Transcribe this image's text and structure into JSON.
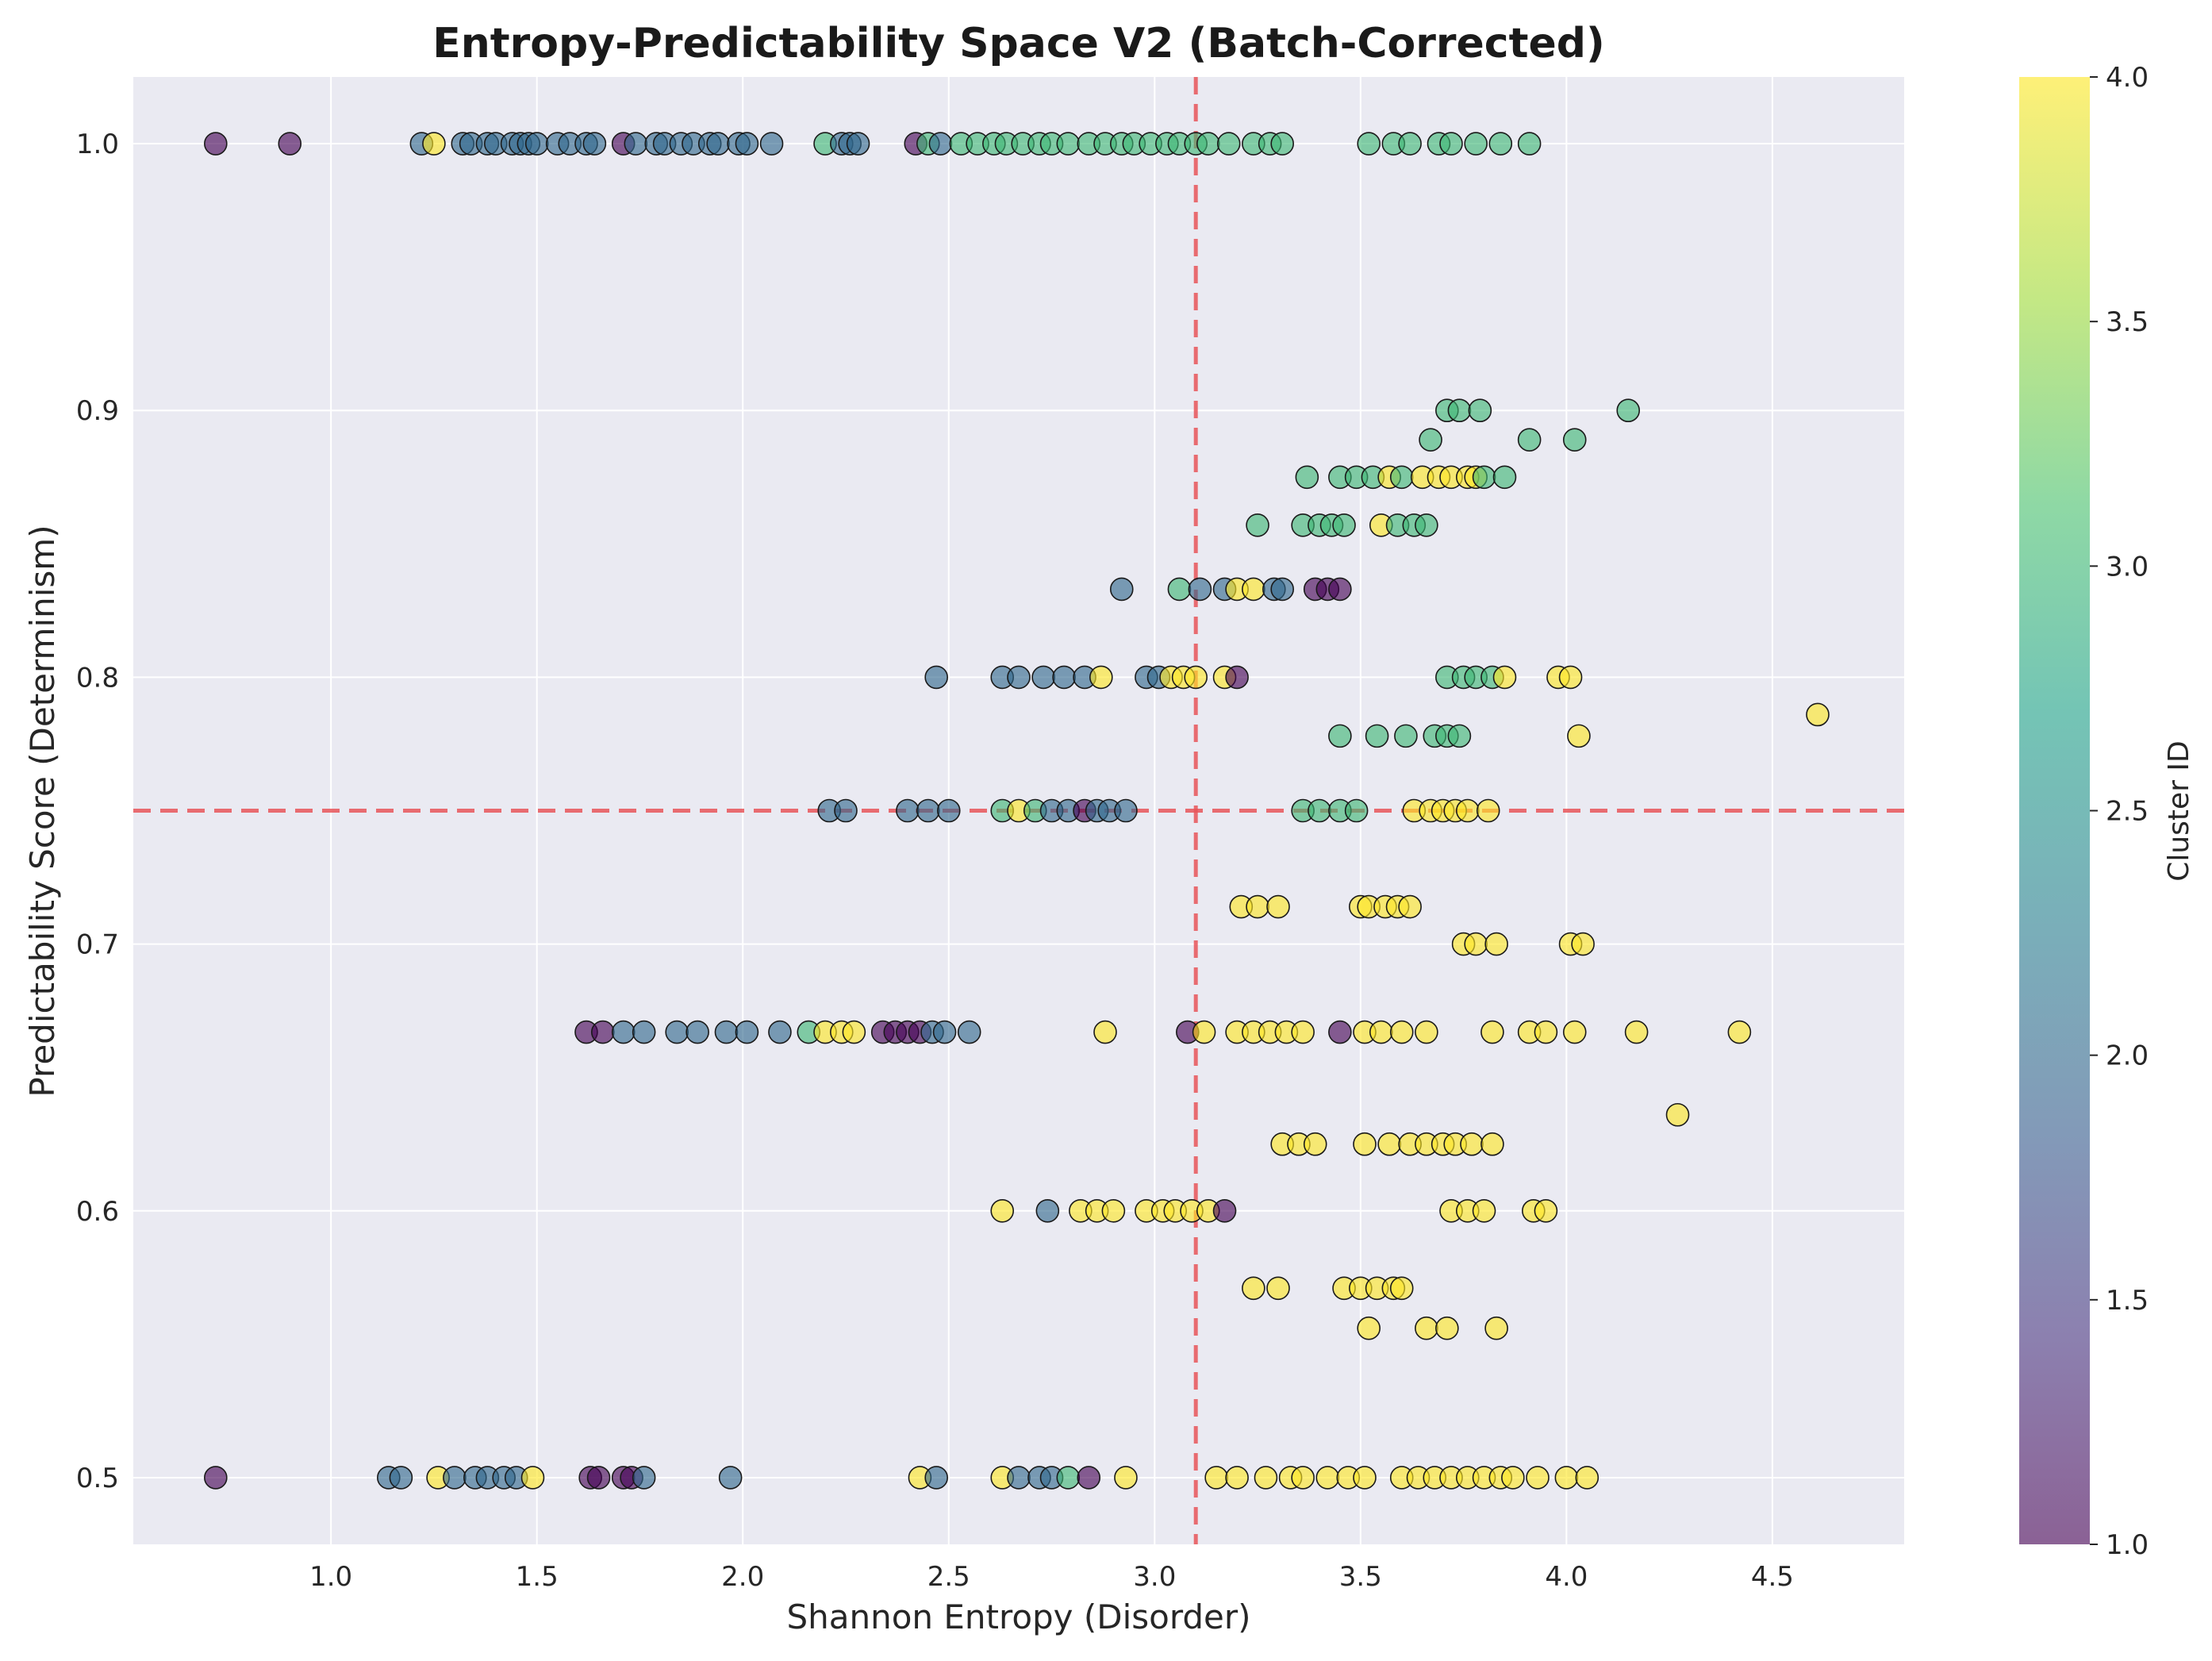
{
  "chart_data": {
    "type": "scatter",
    "title": "Entropy-Predictability Space V2 (Batch-Corrected)",
    "xlabel": "Shannon Entropy (Disorder)",
    "ylabel": "Predictability Score (Determinism)",
    "xlim": [
      0.52,
      4.82
    ],
    "ylim": [
      0.475,
      1.025
    ],
    "xticks": [
      "1.0",
      "1.5",
      "2.0",
      "2.5",
      "3.0",
      "3.5",
      "4.0",
      "4.5"
    ],
    "yticks": [
      "0.5",
      "0.6",
      "0.7",
      "0.8",
      "0.9",
      "1.0"
    ],
    "grid": true,
    "reference_lines": {
      "x": 3.1,
      "y": 0.75,
      "color": "#e8555a",
      "style": "dashed"
    },
    "colorbar": {
      "label": "Cluster ID",
      "range": [
        1.0,
        4.0
      ],
      "ticks": [
        "1.0",
        "1.5",
        "2.0",
        "2.5",
        "3.0",
        "3.5",
        "4.0"
      ],
      "colormap": "viridis"
    },
    "points": [
      [
        0.72,
        1.0,
        1
      ],
      [
        0.9,
        1.0,
        1
      ],
      [
        1.22,
        1.0,
        2
      ],
      [
        1.25,
        1.0,
        4
      ],
      [
        1.32,
        1.0,
        2
      ],
      [
        1.34,
        1.0,
        2
      ],
      [
        1.38,
        1.0,
        2
      ],
      [
        1.4,
        1.0,
        2
      ],
      [
        1.44,
        1.0,
        2
      ],
      [
        1.46,
        1.0,
        2
      ],
      [
        1.48,
        1.0,
        2
      ],
      [
        1.5,
        1.0,
        2
      ],
      [
        1.55,
        1.0,
        2
      ],
      [
        1.58,
        1.0,
        2
      ],
      [
        1.62,
        1.0,
        2
      ],
      [
        1.64,
        1.0,
        2
      ],
      [
        1.71,
        1.0,
        1
      ],
      [
        1.74,
        1.0,
        2
      ],
      [
        1.79,
        1.0,
        2
      ],
      [
        1.81,
        1.0,
        2
      ],
      [
        1.85,
        1.0,
        2
      ],
      [
        1.88,
        1.0,
        2
      ],
      [
        1.92,
        1.0,
        2
      ],
      [
        1.94,
        1.0,
        2
      ],
      [
        1.99,
        1.0,
        2
      ],
      [
        2.01,
        1.0,
        2
      ],
      [
        2.07,
        1.0,
        2
      ],
      [
        2.2,
        1.0,
        3
      ],
      [
        2.24,
        1.0,
        2
      ],
      [
        2.26,
        1.0,
        2
      ],
      [
        2.28,
        1.0,
        2
      ],
      [
        2.42,
        1.0,
        1
      ],
      [
        2.45,
        1.0,
        3
      ],
      [
        2.48,
        1.0,
        2
      ],
      [
        2.53,
        1.0,
        3
      ],
      [
        2.57,
        1.0,
        3
      ],
      [
        2.61,
        1.0,
        3
      ],
      [
        2.64,
        1.0,
        3
      ],
      [
        2.68,
        1.0,
        3
      ],
      [
        2.72,
        1.0,
        3
      ],
      [
        2.75,
        1.0,
        3
      ],
      [
        2.79,
        1.0,
        3
      ],
      [
        2.84,
        1.0,
        3
      ],
      [
        2.88,
        1.0,
        3
      ],
      [
        2.92,
        1.0,
        3
      ],
      [
        2.95,
        1.0,
        3
      ],
      [
        2.99,
        1.0,
        3
      ],
      [
        3.03,
        1.0,
        3
      ],
      [
        3.06,
        1.0,
        3
      ],
      [
        3.1,
        1.0,
        3
      ],
      [
        3.13,
        1.0,
        3
      ],
      [
        3.18,
        1.0,
        3
      ],
      [
        3.24,
        1.0,
        3
      ],
      [
        3.28,
        1.0,
        3
      ],
      [
        3.31,
        1.0,
        3
      ],
      [
        3.52,
        1.0,
        3
      ],
      [
        3.58,
        1.0,
        3
      ],
      [
        3.62,
        1.0,
        3
      ],
      [
        3.69,
        1.0,
        3
      ],
      [
        3.72,
        1.0,
        3
      ],
      [
        3.78,
        1.0,
        3
      ],
      [
        3.84,
        1.0,
        3
      ],
      [
        3.91,
        1.0,
        3
      ],
      [
        3.71,
        0.9,
        3
      ],
      [
        3.74,
        0.9,
        3
      ],
      [
        3.79,
        0.9,
        3
      ],
      [
        4.15,
        0.9,
        3
      ],
      [
        3.67,
        0.889,
        3
      ],
      [
        3.91,
        0.889,
        3
      ],
      [
        4.02,
        0.889,
        3
      ],
      [
        3.37,
        0.875,
        3
      ],
      [
        3.45,
        0.875,
        3
      ],
      [
        3.49,
        0.875,
        3
      ],
      [
        3.53,
        0.875,
        3
      ],
      [
        3.57,
        0.875,
        4
      ],
      [
        3.6,
        0.875,
        3
      ],
      [
        3.65,
        0.875,
        4
      ],
      [
        3.69,
        0.875,
        4
      ],
      [
        3.72,
        0.875,
        4
      ],
      [
        3.76,
        0.875,
        4
      ],
      [
        3.78,
        0.875,
        4
      ],
      [
        3.8,
        0.875,
        3
      ],
      [
        3.85,
        0.875,
        3
      ],
      [
        3.25,
        0.857,
        3
      ],
      [
        3.36,
        0.857,
        3
      ],
      [
        3.4,
        0.857,
        3
      ],
      [
        3.43,
        0.857,
        3
      ],
      [
        3.46,
        0.857,
        3
      ],
      [
        3.55,
        0.857,
        4
      ],
      [
        3.59,
        0.857,
        3
      ],
      [
        3.63,
        0.857,
        3
      ],
      [
        3.66,
        0.857,
        3
      ],
      [
        2.92,
        0.833,
        2
      ],
      [
        3.06,
        0.833,
        3
      ],
      [
        3.11,
        0.833,
        2
      ],
      [
        3.17,
        0.833,
        2
      ],
      [
        3.2,
        0.833,
        4
      ],
      [
        3.24,
        0.833,
        4
      ],
      [
        3.29,
        0.833,
        2
      ],
      [
        3.31,
        0.833,
        2
      ],
      [
        3.39,
        0.833,
        1
      ],
      [
        3.42,
        0.833,
        1
      ],
      [
        3.45,
        0.833,
        1
      ],
      [
        2.47,
        0.8,
        2
      ],
      [
        2.63,
        0.8,
        2
      ],
      [
        2.67,
        0.8,
        2
      ],
      [
        2.73,
        0.8,
        2
      ],
      [
        2.78,
        0.8,
        2
      ],
      [
        2.83,
        0.8,
        2
      ],
      [
        2.87,
        0.8,
        4
      ],
      [
        2.98,
        0.8,
        2
      ],
      [
        3.01,
        0.8,
        2
      ],
      [
        3.04,
        0.8,
        4
      ],
      [
        3.07,
        0.8,
        4
      ],
      [
        3.1,
        0.8,
        4
      ],
      [
        3.17,
        0.8,
        4
      ],
      [
        3.2,
        0.8,
        1
      ],
      [
        3.71,
        0.8,
        3
      ],
      [
        3.75,
        0.8,
        3
      ],
      [
        3.78,
        0.8,
        3
      ],
      [
        3.82,
        0.8,
        3
      ],
      [
        3.85,
        0.8,
        4
      ],
      [
        3.98,
        0.8,
        4
      ],
      [
        4.01,
        0.8,
        4
      ],
      [
        3.45,
        0.778,
        3
      ],
      [
        3.54,
        0.778,
        3
      ],
      [
        3.61,
        0.778,
        3
      ],
      [
        3.68,
        0.778,
        3
      ],
      [
        3.71,
        0.778,
        3
      ],
      [
        3.74,
        0.778,
        3
      ],
      [
        4.03,
        0.778,
        4
      ],
      [
        4.61,
        0.786,
        4
      ],
      [
        2.21,
        0.75,
        2
      ],
      [
        2.25,
        0.75,
        2
      ],
      [
        2.4,
        0.75,
        2
      ],
      [
        2.45,
        0.75,
        2
      ],
      [
        2.5,
        0.75,
        2
      ],
      [
        2.63,
        0.75,
        3
      ],
      [
        2.67,
        0.75,
        4
      ],
      [
        2.71,
        0.75,
        3
      ],
      [
        2.75,
        0.75,
        2
      ],
      [
        2.79,
        0.75,
        2
      ],
      [
        2.83,
        0.75,
        1
      ],
      [
        2.86,
        0.75,
        2
      ],
      [
        2.89,
        0.75,
        2
      ],
      [
        2.93,
        0.75,
        2
      ],
      [
        3.36,
        0.75,
        3
      ],
      [
        3.4,
        0.75,
        3
      ],
      [
        3.45,
        0.75,
        3
      ],
      [
        3.49,
        0.75,
        3
      ],
      [
        3.63,
        0.75,
        4
      ],
      [
        3.67,
        0.75,
        4
      ],
      [
        3.7,
        0.75,
        4
      ],
      [
        3.73,
        0.75,
        4
      ],
      [
        3.76,
        0.75,
        4
      ],
      [
        3.81,
        0.75,
        4
      ],
      [
        3.21,
        0.714,
        4
      ],
      [
        3.25,
        0.714,
        4
      ],
      [
        3.3,
        0.714,
        4
      ],
      [
        3.5,
        0.714,
        4
      ],
      [
        3.52,
        0.714,
        4
      ],
      [
        3.56,
        0.714,
        4
      ],
      [
        3.59,
        0.714,
        4
      ],
      [
        3.62,
        0.714,
        4
      ],
      [
        3.75,
        0.7,
        4
      ],
      [
        3.78,
        0.7,
        4
      ],
      [
        3.83,
        0.7,
        4
      ],
      [
        4.01,
        0.7,
        4
      ],
      [
        4.04,
        0.7,
        4
      ],
      [
        1.62,
        0.667,
        1
      ],
      [
        1.66,
        0.667,
        1
      ],
      [
        1.71,
        0.667,
        2
      ],
      [
        1.76,
        0.667,
        2
      ],
      [
        1.84,
        0.667,
        2
      ],
      [
        1.89,
        0.667,
        2
      ],
      [
        1.96,
        0.667,
        2
      ],
      [
        2.01,
        0.667,
        2
      ],
      [
        2.09,
        0.667,
        2
      ],
      [
        2.16,
        0.667,
        3
      ],
      [
        2.2,
        0.667,
        4
      ],
      [
        2.24,
        0.667,
        4
      ],
      [
        2.27,
        0.667,
        4
      ],
      [
        2.34,
        0.667,
        1
      ],
      [
        2.37,
        0.667,
        1
      ],
      [
        2.4,
        0.667,
        1
      ],
      [
        2.43,
        0.667,
        1
      ],
      [
        2.46,
        0.667,
        2
      ],
      [
        2.49,
        0.667,
        2
      ],
      [
        2.55,
        0.667,
        2
      ],
      [
        2.88,
        0.667,
        4
      ],
      [
        3.08,
        0.667,
        1
      ],
      [
        3.12,
        0.667,
        4
      ],
      [
        3.2,
        0.667,
        4
      ],
      [
        3.24,
        0.667,
        4
      ],
      [
        3.28,
        0.667,
        4
      ],
      [
        3.32,
        0.667,
        4
      ],
      [
        3.36,
        0.667,
        4
      ],
      [
        3.45,
        0.667,
        1
      ],
      [
        3.51,
        0.667,
        4
      ],
      [
        3.55,
        0.667,
        4
      ],
      [
        3.6,
        0.667,
        4
      ],
      [
        3.66,
        0.667,
        4
      ],
      [
        3.82,
        0.667,
        4
      ],
      [
        3.91,
        0.667,
        4
      ],
      [
        3.95,
        0.667,
        4
      ],
      [
        4.02,
        0.667,
        4
      ],
      [
        4.17,
        0.667,
        4
      ],
      [
        4.42,
        0.667,
        4
      ],
      [
        4.27,
        0.636,
        4
      ],
      [
        3.31,
        0.625,
        4
      ],
      [
        3.35,
        0.625,
        4
      ],
      [
        3.39,
        0.625,
        4
      ],
      [
        3.51,
        0.625,
        4
      ],
      [
        3.57,
        0.625,
        4
      ],
      [
        3.62,
        0.625,
        4
      ],
      [
        3.66,
        0.625,
        4
      ],
      [
        3.7,
        0.625,
        4
      ],
      [
        3.73,
        0.625,
        4
      ],
      [
        3.77,
        0.625,
        4
      ],
      [
        3.82,
        0.625,
        4
      ],
      [
        2.63,
        0.6,
        4
      ],
      [
        2.74,
        0.6,
        2
      ],
      [
        2.82,
        0.6,
        4
      ],
      [
        2.86,
        0.6,
        4
      ],
      [
        2.9,
        0.6,
        4
      ],
      [
        2.98,
        0.6,
        4
      ],
      [
        3.02,
        0.6,
        4
      ],
      [
        3.05,
        0.6,
        4
      ],
      [
        3.09,
        0.6,
        4
      ],
      [
        3.13,
        0.6,
        4
      ],
      [
        3.17,
        0.6,
        1
      ],
      [
        3.72,
        0.6,
        4
      ],
      [
        3.76,
        0.6,
        4
      ],
      [
        3.8,
        0.6,
        4
      ],
      [
        3.92,
        0.6,
        4
      ],
      [
        3.95,
        0.6,
        4
      ],
      [
        3.24,
        0.571,
        4
      ],
      [
        3.3,
        0.571,
        4
      ],
      [
        3.46,
        0.571,
        4
      ],
      [
        3.5,
        0.571,
        4
      ],
      [
        3.54,
        0.571,
        4
      ],
      [
        3.58,
        0.571,
        4
      ],
      [
        3.6,
        0.571,
        4
      ],
      [
        3.52,
        0.556,
        4
      ],
      [
        3.66,
        0.556,
        4
      ],
      [
        3.71,
        0.556,
        4
      ],
      [
        3.83,
        0.556,
        4
      ],
      [
        0.72,
        0.5,
        1
      ],
      [
        1.14,
        0.5,
        2
      ],
      [
        1.17,
        0.5,
        2
      ],
      [
        1.26,
        0.5,
        4
      ],
      [
        1.3,
        0.5,
        2
      ],
      [
        1.35,
        0.5,
        2
      ],
      [
        1.38,
        0.5,
        2
      ],
      [
        1.42,
        0.5,
        2
      ],
      [
        1.45,
        0.5,
        2
      ],
      [
        1.49,
        0.5,
        4
      ],
      [
        1.63,
        0.5,
        1
      ],
      [
        1.65,
        0.5,
        1
      ],
      [
        1.71,
        0.5,
        1
      ],
      [
        1.73,
        0.5,
        1
      ],
      [
        1.76,
        0.5,
        2
      ],
      [
        1.97,
        0.5,
        2
      ],
      [
        2.43,
        0.5,
        4
      ],
      [
        2.47,
        0.5,
        2
      ],
      [
        2.63,
        0.5,
        4
      ],
      [
        2.67,
        0.5,
        2
      ],
      [
        2.72,
        0.5,
        2
      ],
      [
        2.75,
        0.5,
        2
      ],
      [
        2.79,
        0.5,
        3
      ],
      [
        2.84,
        0.5,
        1
      ],
      [
        2.93,
        0.5,
        4
      ],
      [
        3.15,
        0.5,
        4
      ],
      [
        3.2,
        0.5,
        4
      ],
      [
        3.27,
        0.5,
        4
      ],
      [
        3.33,
        0.5,
        4
      ],
      [
        3.36,
        0.5,
        4
      ],
      [
        3.42,
        0.5,
        4
      ],
      [
        3.47,
        0.5,
        4
      ],
      [
        3.51,
        0.5,
        4
      ],
      [
        3.6,
        0.5,
        4
      ],
      [
        3.64,
        0.5,
        4
      ],
      [
        3.68,
        0.5,
        4
      ],
      [
        3.72,
        0.5,
        4
      ],
      [
        3.76,
        0.5,
        4
      ],
      [
        3.8,
        0.5,
        4
      ],
      [
        3.84,
        0.5,
        4
      ],
      [
        3.87,
        0.5,
        4
      ],
      [
        3.93,
        0.5,
        4
      ],
      [
        4.0,
        0.5,
        4
      ],
      [
        4.05,
        0.5,
        4
      ]
    ]
  }
}
